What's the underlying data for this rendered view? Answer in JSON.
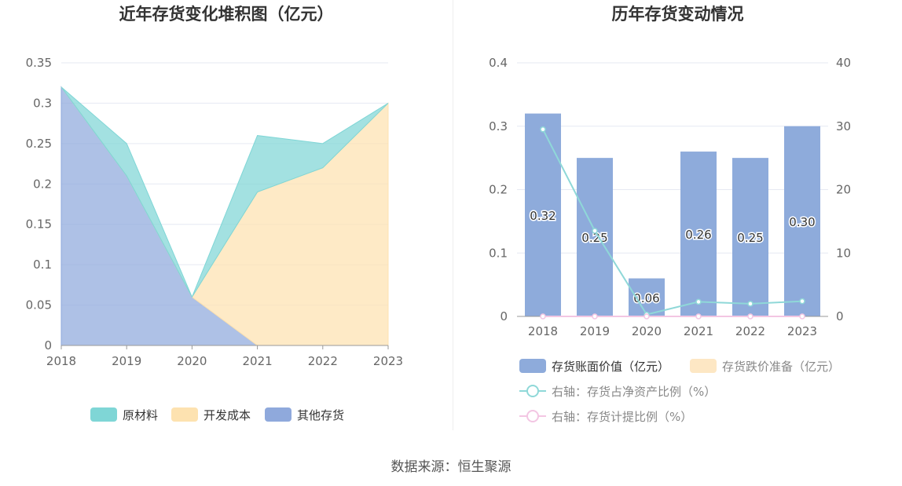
{
  "source": "数据来源：恒生聚源",
  "chart_data": [
    {
      "type": "area",
      "stacked": true,
      "title": "近年存货变化堆积图（亿元）",
      "x": [
        "2018",
        "2019",
        "2020",
        "2021",
        "2022",
        "2023"
      ],
      "ylim": [
        0,
        0.35
      ],
      "yticks": [
        "0",
        "0.05",
        "0.1",
        "0.15",
        "0.2",
        "0.25",
        "0.3",
        "0.35"
      ],
      "grid": true,
      "legend_position": "bottom",
      "series": [
        {
          "name": "原材料",
          "color": "#7fd6d6",
          "values": [
            0.0,
            0.04,
            0.0,
            0.07,
            0.03,
            0.0
          ]
        },
        {
          "name": "开发成本",
          "color": "#fde2b0",
          "values": [
            0.0,
            0.0,
            0.0,
            0.19,
            0.22,
            0.3
          ]
        },
        {
          "name": "其他存货",
          "color": "#8fa9dc",
          "values": [
            0.32,
            0.21,
            0.06,
            0.0,
            0.0,
            0.0
          ]
        }
      ]
    },
    {
      "type": "bar",
      "title": "历年存货变动情况",
      "x": [
        "2018",
        "2019",
        "2020",
        "2021",
        "2022",
        "2023"
      ],
      "ylim": [
        0,
        0.4
      ],
      "yticks": [
        "0",
        "0.1",
        "0.2",
        "0.3",
        "0.4"
      ],
      "y2lim": [
        0,
        40
      ],
      "y2ticks": [
        "0",
        "10",
        "20",
        "30",
        "40"
      ],
      "grid": true,
      "legend_position": "bottom",
      "series": [
        {
          "name": "存货账面价值（亿元）",
          "kind": "bar",
          "color": "#8eabdb",
          "values": [
            0.32,
            0.25,
            0.06,
            0.26,
            0.25,
            0.3
          ],
          "labels": [
            "0.32",
            "0.25",
            "0.06",
            "0.26",
            "0.25",
            "0.30"
          ]
        },
        {
          "name": "存货跌价准备（亿元）",
          "kind": "bar",
          "color": "#fde7c4",
          "values": [
            0,
            0,
            0,
            0,
            0,
            0
          ]
        },
        {
          "name": "右轴：存货占净资产比例（%）",
          "kind": "line",
          "axis": "right",
          "color": "#8fd8d8",
          "values": [
            29.5,
            13.5,
            0.3,
            2.3,
            2.0,
            2.4
          ]
        },
        {
          "name": "右轴：存货计提比例（%）",
          "kind": "line",
          "axis": "right",
          "color": "#f3c6e3",
          "values": [
            0,
            0,
            0,
            0,
            0,
            0
          ]
        }
      ]
    }
  ]
}
